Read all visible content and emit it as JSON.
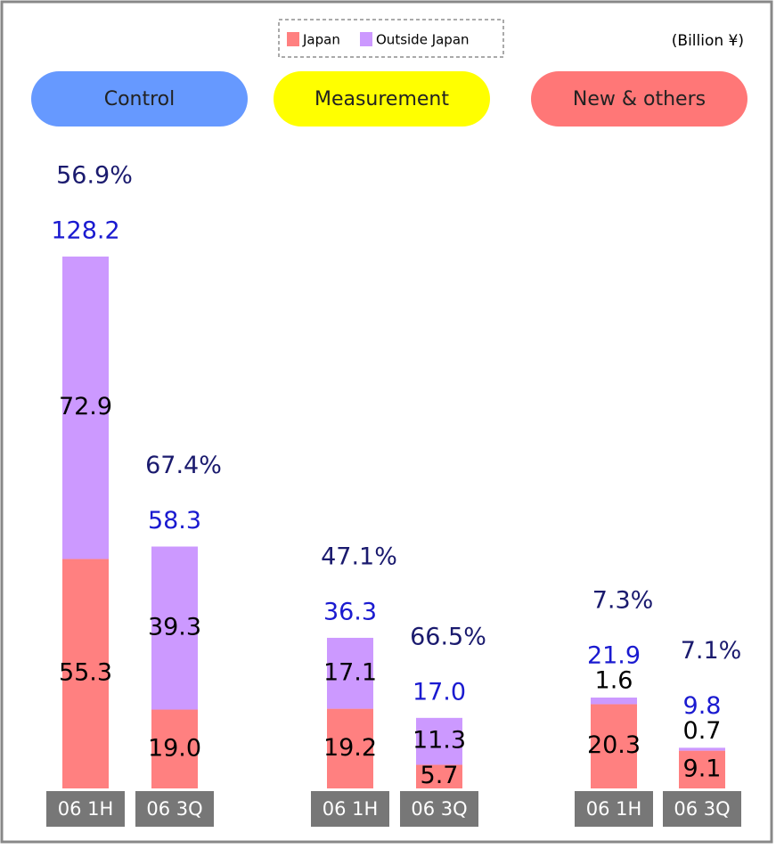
{
  "chart_data": {
    "type": "bar",
    "stacked": true,
    "unit_label": "(Billion ¥)",
    "groups": [
      "Control",
      "Measurement",
      "New & others"
    ],
    "group_colors": [
      "#6699ff",
      "#ffff00",
      "#ff7777"
    ],
    "categories": [
      "06 1H",
      "06 3Q",
      "06 1H",
      "06 3Q",
      "06 1H",
      "06 3Q"
    ],
    "series": [
      {
        "name": "Japan",
        "color": "#ff8080",
        "values": [
          55.3,
          19.0,
          19.2,
          5.7,
          20.3,
          9.1
        ],
        "value_labels": [
          "55.3",
          "19.0",
          "19.2",
          "5.7",
          "20.3",
          "9.1"
        ]
      },
      {
        "name": "Outside Japan",
        "color": "#cc99ff",
        "values": [
          72.9,
          39.3,
          17.1,
          11.3,
          1.6,
          0.7
        ],
        "value_labels": [
          "72.9",
          "39.3",
          "17.1",
          "11.3",
          "1.6",
          "0.7"
        ]
      }
    ],
    "totals": {
      "values": [
        128.2,
        58.3,
        36.3,
        17.0,
        21.9,
        9.8
      ],
      "value_labels": [
        "128.2",
        "58.3",
        "36.3",
        "17.0",
        "21.9",
        "9.8"
      ]
    },
    "shares": {
      "values": [
        56.9,
        67.4,
        47.1,
        66.5,
        7.3,
        7.1
      ],
      "value_labels": [
        "56.9%",
        "67.4%",
        "47.1%",
        "66.5%",
        "7.3%",
        "7.1%"
      ]
    }
  }
}
